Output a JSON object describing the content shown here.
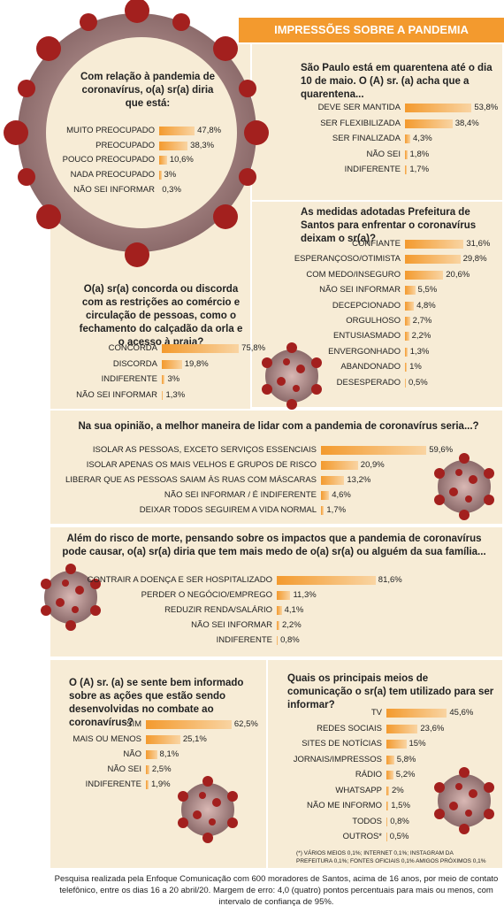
{
  "header": {
    "title": "IMPRESSÕES SOBRE A PANDEMIA"
  },
  "chart_data": [
    {
      "type": "bar",
      "title": "Com relação à pandemia de coronavírus, o(a) sr(a) diria que está:",
      "categories": [
        "MUITO PREOCUPADO",
        "PREOCUPADO",
        "POUCO PREOCUPADO",
        "NADA PREOCUPADO",
        "NÃO SEI INFORMAR"
      ],
      "values": [
        47.8,
        38.3,
        10.6,
        3,
        0.3
      ],
      "value_labels": [
        "47,8%",
        "38,3%",
        "10,6%",
        "3%",
        "0,3%"
      ],
      "color": "#f39a2e"
    },
    {
      "type": "bar",
      "title": "São Paulo está em quarentena até o dia 10 de maio. O (A) sr. (a) acha que a quarentena...",
      "categories": [
        "DEVE SER MANTIDA",
        "SER FLEXIBILIZADA",
        "SER FINALIZADA",
        "NÃO SEI",
        "INDIFERENTE"
      ],
      "values": [
        53.8,
        38.4,
        4.3,
        1.8,
        1.7
      ],
      "value_labels": [
        "53,8%",
        "38,4%",
        "4,3%",
        "1,8%",
        "1,7%"
      ],
      "color": "#f39a2e"
    },
    {
      "type": "bar",
      "title": "As medidas adotadas Prefeitura de Santos para enfrentar o coronavírus deixam o sr(a)?",
      "categories": [
        "CONFIANTE",
        "ESPERANÇOSO/OTIMISTA",
        "COM MEDO/INSEGURO",
        "NÃO SEI INFORMAR",
        "DECEPCIONADO",
        "ORGULHOSO",
        "ENTUSIASMADO",
        "ENVERGONHADO",
        "ABANDONADO",
        "DESESPERADO"
      ],
      "values": [
        31.6,
        29.8,
        20.6,
        5.5,
        4.8,
        2.7,
        2.2,
        1.3,
        1,
        0.5
      ],
      "value_labels": [
        "31,6%",
        "29,8%",
        "20,6%",
        "5,5%",
        "4,8%",
        "2,7%",
        "2,2%",
        "1,3%",
        "1%",
        "0,5%"
      ],
      "color": "#f39a2e"
    },
    {
      "type": "bar",
      "title": "O(a) sr(a) concorda ou discorda com as restrições ao comércio e circulação de pessoas, como o fechamento do calçadão da orla e o acesso à praia?",
      "categories": [
        "CONCORDA",
        "DISCORDA",
        "INDIFERENTE",
        "NÃO SEI INFORMAR"
      ],
      "values": [
        75.8,
        19.8,
        3,
        1.3
      ],
      "value_labels": [
        "75,8%",
        "19,8%",
        "3%",
        "1,3%"
      ],
      "color": "#f39a2e"
    },
    {
      "type": "bar",
      "title": "Na sua opinião, a melhor maneira de lidar com a pandemia de coronavírus seria...?",
      "categories": [
        "ISOLAR AS PESSOAS, EXCETO SERVIÇOS ESSENCIAIS",
        "ISOLAR APENAS OS MAIS VELHOS E GRUPOS DE RISCO",
        "LIBERAR QUE AS PESSOAS SAIAM ÀS RUAS COM MÁSCARAS",
        "NÃO SEI INFORMAR / É INDIFERENTE",
        "DEIXAR TODOS SEGUIREM A VIDA NORMAL"
      ],
      "values": [
        59.6,
        20.9,
        13.2,
        4.6,
        1.7
      ],
      "value_labels": [
        "59,6%",
        "20,9%",
        "13,2%",
        "4,6%",
        "1,7%"
      ],
      "color": "#f39a2e"
    },
    {
      "type": "bar",
      "title": "Além do risco de morte, pensando sobre os impactos que a pandemia de coronavírus pode causar, o(a) sr(a) diria que tem mais medo de o(a) sr(a) ou alguém da sua família...",
      "categories": [
        "CONTRAIR A DOENÇA E SER HOSPITALIZADO",
        "PERDER O NEGÓCIO/EMPREGO",
        "REDUZIR RENDA/SALÁRIO",
        "NÃO SEI INFORMAR",
        "INDIFERENTE"
      ],
      "values": [
        81.6,
        11.3,
        4.1,
        2.2,
        0.8
      ],
      "value_labels": [
        "81,6%",
        "11,3%",
        "4,1%",
        "2,2%",
        "0,8%"
      ],
      "color": "#f39a2e"
    },
    {
      "type": "bar",
      "title": "O (A) sr. (a) se sente bem informado sobre as ações que estão sendo desenvolvidas no combate ao coronavírus?",
      "categories": [
        "SIM",
        "MAIS OU MENOS",
        "NÃO",
        "NÃO SEI",
        "INDIFERENTE"
      ],
      "values": [
        62.5,
        25.1,
        8.1,
        2.5,
        1.9
      ],
      "value_labels": [
        "62,5%",
        "25,1%",
        "8,1%",
        "2,5%",
        "1,9%"
      ],
      "color": "#f39a2e"
    },
    {
      "type": "bar",
      "title": "Quais os principais meios de comunicação o sr(a) tem utilizado para ser informar?",
      "categories": [
        "TV",
        "REDES SOCIAIS",
        "SITES DE NOTÍCIAS",
        "JORNAIS/IMPRESSOS",
        "RÁDIO",
        "WHATSAPP",
        "NÃO ME INFORMO",
        "TODOS",
        "OUTROS*"
      ],
      "values": [
        45.6,
        23.6,
        15,
        5.8,
        5.2,
        2,
        1.5,
        0.8,
        0.5
      ],
      "value_labels": [
        "45,6%",
        "23,6%",
        "15%",
        "5,8%",
        "5,2%",
        "2%",
        "1,5%",
        "0,8%",
        "0,5%"
      ],
      "color": "#f39a2e",
      "note": "(*) VÁRIOS MEIOS 0,1%; INTERNET 0,1%; INSTAGRAM DA PREFEITURA 0,1%; FONTES OFICIAIS 0,1% AMIGOS PRÓXIMOS 0,1%"
    }
  ],
  "footer": {
    "text": "Pesquisa realizada pela Enfoque Comunicação com 600 moradores de Santos, acima de 16 anos, por meio de contato telefônico, entre os dias 16 a 20 abril/20. Margem de erro: 4,0 (quatro) pontos percentuais para mais ou menos, com intervalo de confiança de 95%."
  }
}
